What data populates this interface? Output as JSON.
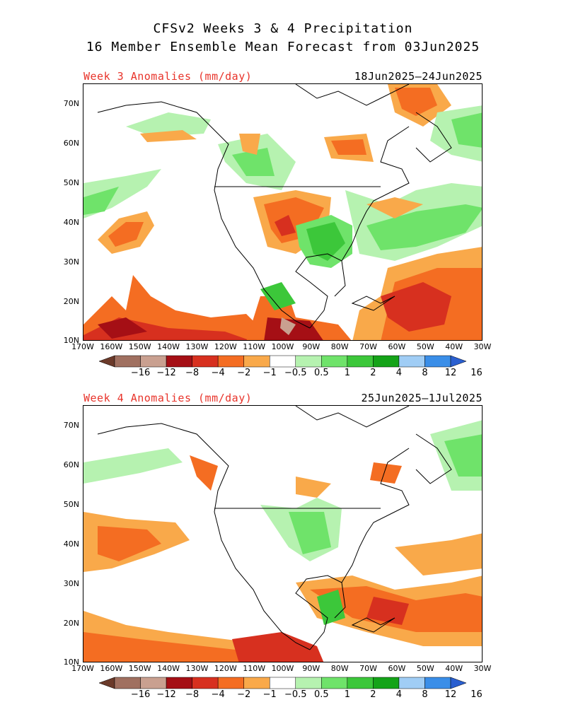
{
  "title_line1": "CFSv2 Weeks 3 & 4 Precipitation",
  "title_line2": "16 Member Ensemble Mean Forecast from 03Jun2025",
  "panels": [
    {
      "label": "Week 3 Anomalies (mm/day)",
      "dates": "18Jun2025–24Jun2025"
    },
    {
      "label": "Week 4 Anomalies (mm/day)",
      "dates": "25Jun2025–1Jul2025"
    }
  ],
  "lat_ticks": [
    "70N",
    "60N",
    "50N",
    "40N",
    "30N",
    "20N",
    "10N"
  ],
  "lon_ticks": [
    "170W",
    "160W",
    "150W",
    "140W",
    "130W",
    "120W",
    "110W",
    "100W",
    "90W",
    "80W",
    "70W",
    "60W",
    "50W",
    "40W",
    "30W"
  ],
  "colorbar": {
    "labels": [
      "−16",
      "−12",
      "−8",
      "−4",
      "−2",
      "−1",
      "−0.5",
      "0.5",
      "1",
      "2",
      "4",
      "8",
      "12",
      "16"
    ],
    "colors": [
      "#6b3a2a",
      "#a07060",
      "#c9a090",
      "#a50f15",
      "#d7301f",
      "#f46d22",
      "#f9a94a",
      "#ffffff",
      "#b6f2b0",
      "#6fe36a",
      "#3cc73a",
      "#14a318",
      "#a0cdf5",
      "#3a8ee8",
      "#2a5fd0"
    ]
  },
  "map_colors": {
    "dry_strong": "#a50f15",
    "dry": "#d7301f",
    "dry_mod": "#f46d22",
    "dry_light": "#f9a94a",
    "wet_light": "#b6f2b0",
    "wet": "#6fe36a",
    "wet_mod": "#3cc73a",
    "wet_strong": "#14a318"
  }
}
